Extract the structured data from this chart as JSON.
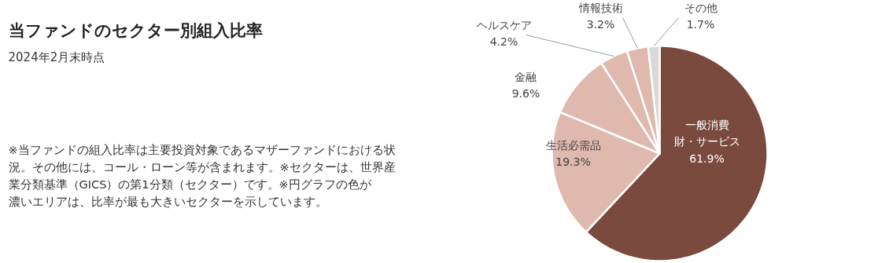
{
  "chart_data": {
    "type": "pie",
    "title": "当ファンドのセクター別組入比率",
    "subtitle": "2024年2月末時点",
    "categories": [
      "一般消費財・サービス",
      "生活必需品",
      "金融",
      "ヘルスケア",
      "情報技術",
      "その他"
    ],
    "values": [
      61.9,
      19.3,
      9.6,
      4.2,
      3.2,
      1.7
    ],
    "colors": [
      "#7b4a3f",
      "#dfb8ae",
      "#dfb8ae",
      "#dfb8ae",
      "#dfb8ae",
      "#d9d9d9"
    ],
    "value_labels": [
      "61.9%",
      "19.3%",
      "9.6%",
      "4.2%",
      "3.2%",
      "1.7%"
    ],
    "annotations": [
      "※当ファンドの組入比率は主要投資対象であるマザーファンドにおける状況。その他には、コール・ローン等が含まれます。※セクターは、世界産業分類基準（GICS）の第1分類（セクター）です。※円グラフの色が濃いエリアは、比率が最も大きいセクターを示しています。"
    ]
  }
}
